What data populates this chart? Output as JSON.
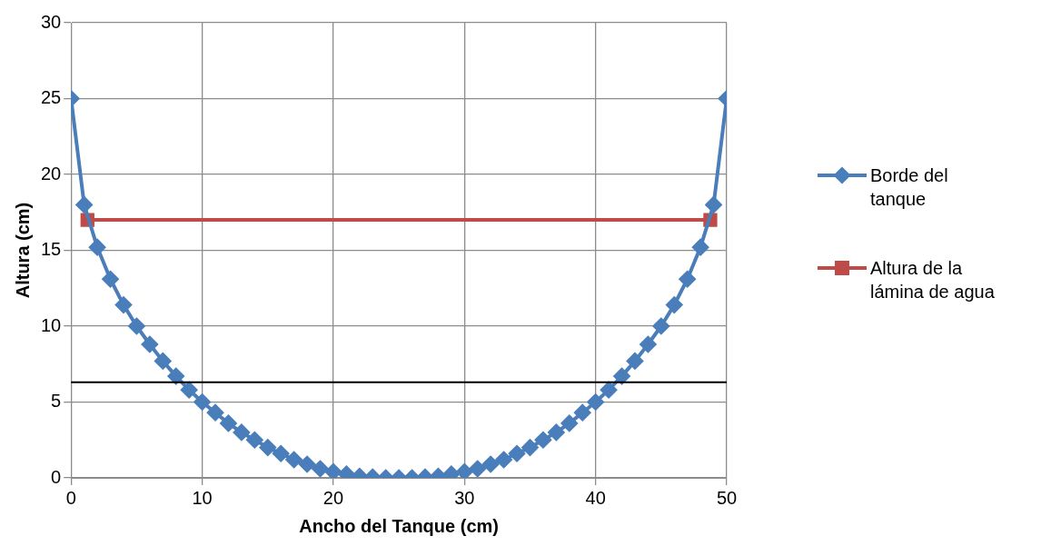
{
  "chart_data": {
    "type": "line",
    "xlabel": "Ancho del Tanque (cm)",
    "ylabel": "Altura (cm)",
    "xlim": [
      0,
      50
    ],
    "xticks": [
      0,
      10,
      20,
      30,
      40,
      50
    ],
    "ylim": [
      0,
      30
    ],
    "yticks": [
      0,
      5,
      10,
      15,
      20,
      25,
      30
    ],
    "grid": true,
    "legend": "right",
    "series": [
      {
        "name": "Borde del tanque",
        "color": "#4a7ebb",
        "marker": "diamond",
        "x": [
          0,
          1,
          2,
          3,
          4,
          5,
          6,
          7,
          8,
          9,
          10,
          11,
          12,
          13,
          14,
          15,
          16,
          17,
          18,
          19,
          20,
          21,
          22,
          23,
          24,
          25,
          26,
          27,
          28,
          29,
          30,
          31,
          32,
          33,
          34,
          35,
          36,
          37,
          38,
          39,
          40,
          41,
          42,
          43,
          44,
          45,
          46,
          47,
          48,
          49,
          50
        ],
        "values": [
          25,
          18,
          15.2,
          13.1,
          11.4,
          10,
          8.8,
          7.7,
          6.7,
          5.8,
          5,
          4.3,
          3.6,
          3,
          2.5,
          2,
          1.6,
          1.2,
          0.9,
          0.6,
          0.4,
          0.25,
          0.1,
          0.05,
          0,
          0,
          0,
          0.05,
          0.1,
          0.25,
          0.4,
          0.6,
          0.9,
          1.2,
          1.6,
          2,
          2.5,
          3,
          3.6,
          4.3,
          5,
          5.8,
          6.7,
          7.7,
          8.8,
          10,
          11.4,
          13.1,
          15.2,
          18,
          25
        ]
      },
      {
        "name": "Altura de la lámina de agua",
        "color": "#be4b48",
        "marker": "square",
        "x": [
          1.25,
          48.75
        ],
        "values": [
          17,
          17
        ]
      }
    ],
    "ref_lines": [
      {
        "axis": "y",
        "value": 6.3,
        "color": "#000000"
      }
    ]
  }
}
